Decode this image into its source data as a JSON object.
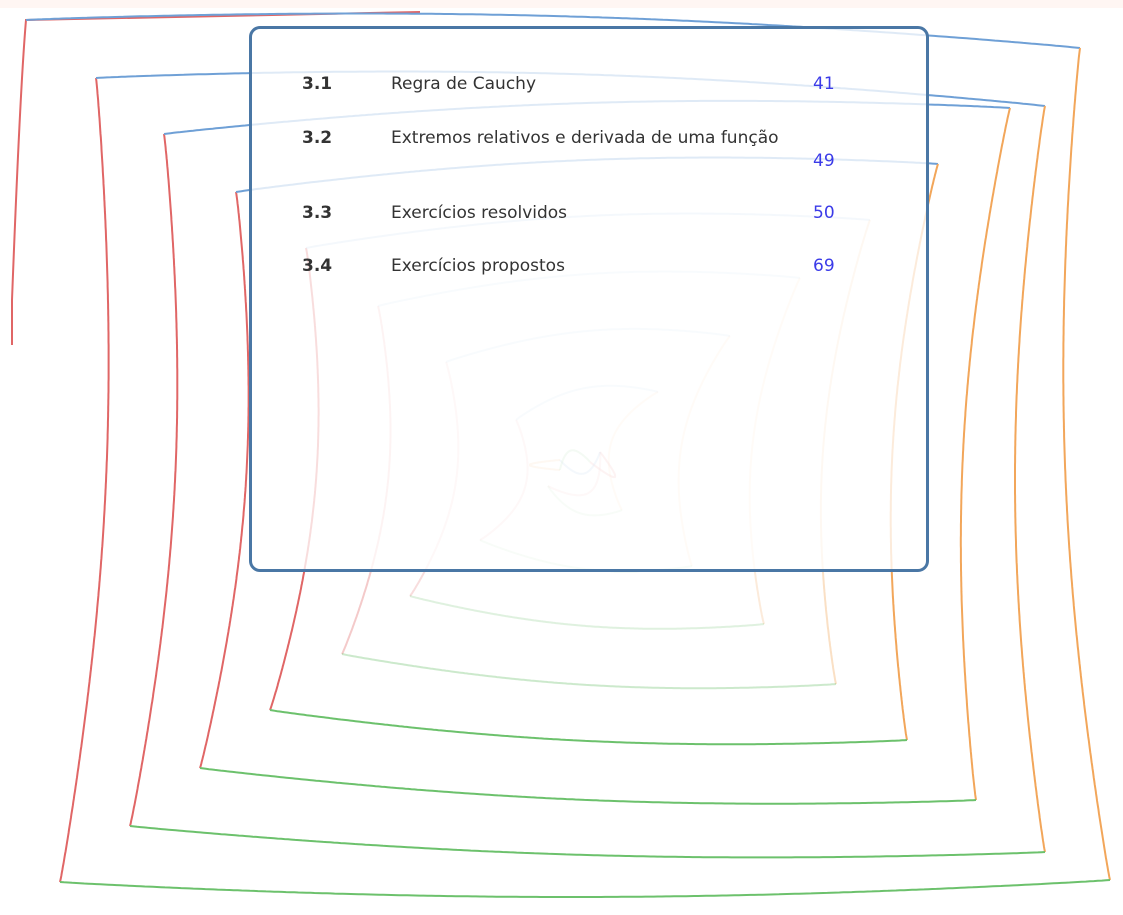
{
  "colors": {
    "card_border": "#4a77a5",
    "page_link": "#3b3be8",
    "text": "#333333",
    "wave_left": "#e06666",
    "wave_top": "#6fa0d6",
    "wave_right": "#f2a65a",
    "wave_bottom": "#6cc16c"
  },
  "toc": {
    "entries": [
      {
        "number": "3.1",
        "title": "Regra de Cauchy",
        "page": "41"
      },
      {
        "number": "3.2",
        "title": "Extremos relativos e derivada de uma função",
        "page": "49"
      },
      {
        "number": "3.3",
        "title": "Exercícios resolvidos",
        "page": "50"
      },
      {
        "number": "3.4",
        "title": "Exercícios propostos",
        "page": "69"
      }
    ]
  }
}
